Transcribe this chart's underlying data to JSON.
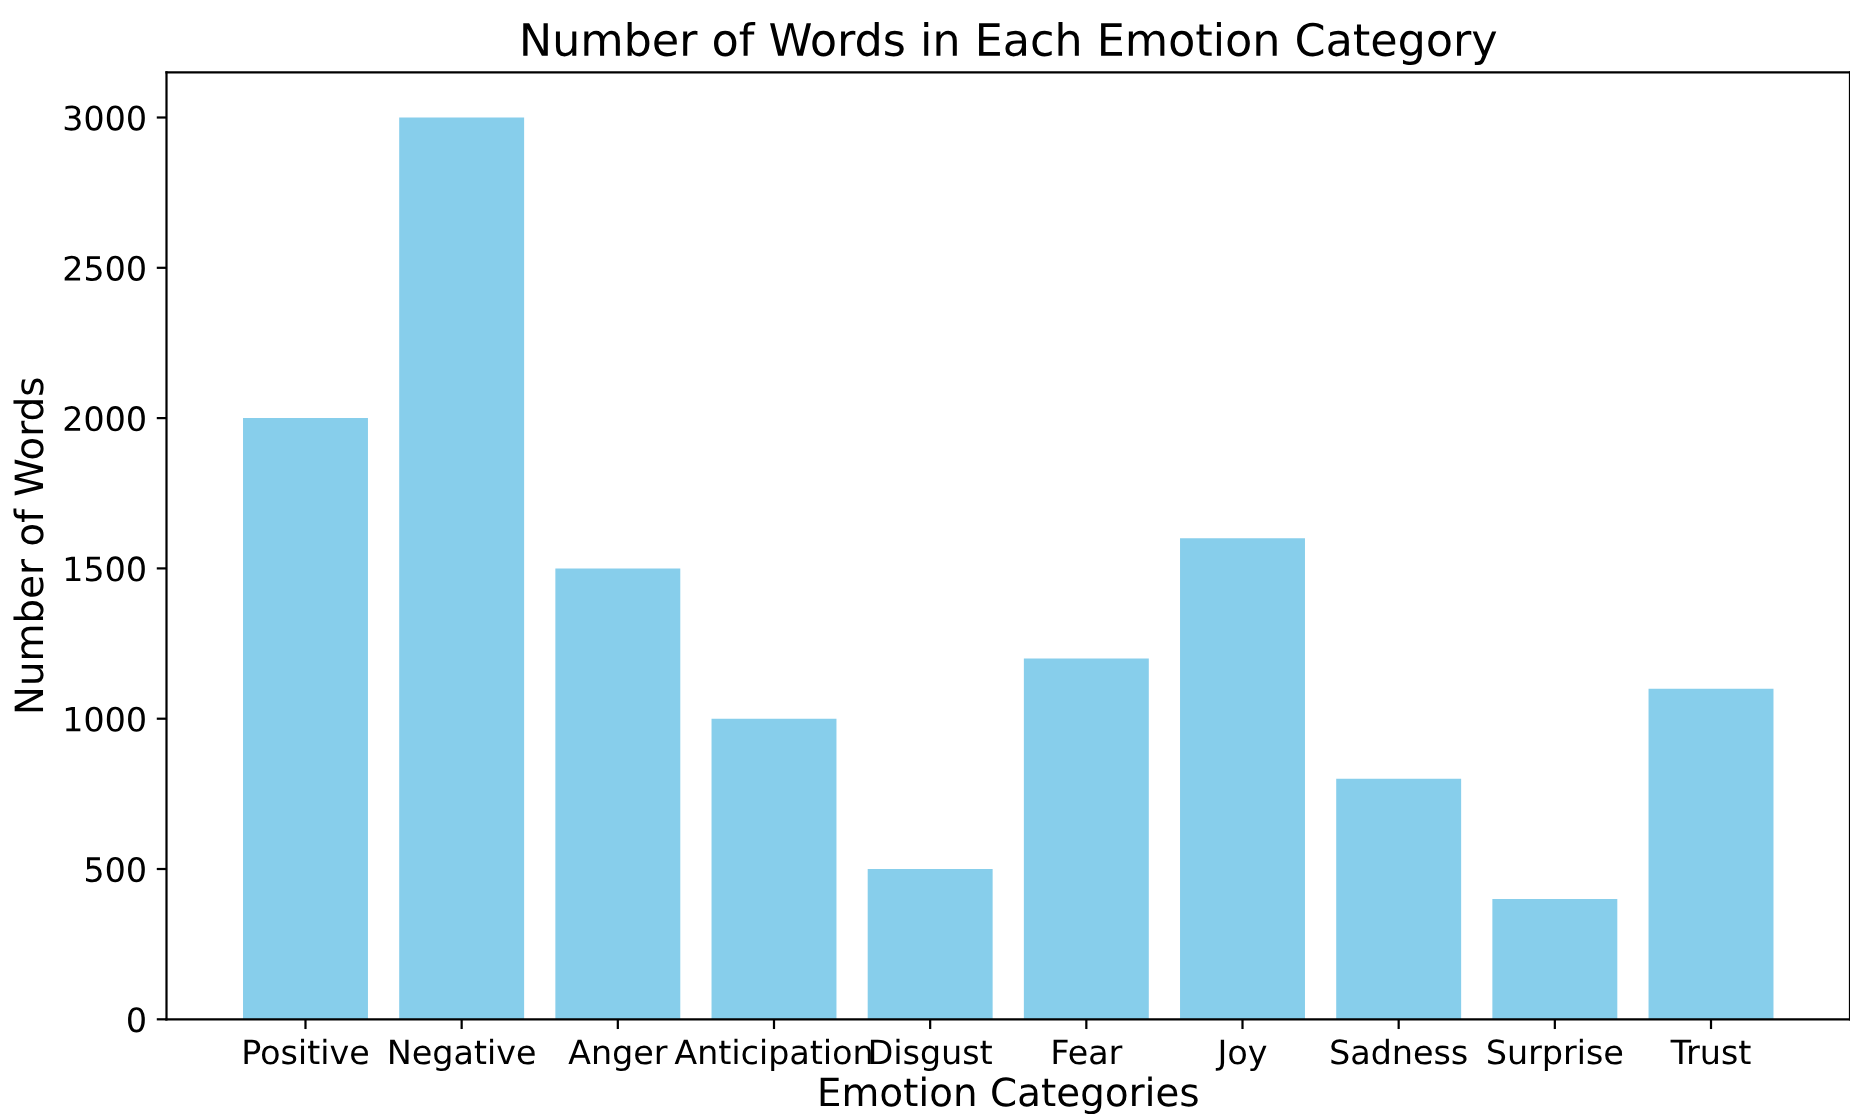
{
  "chart_data": {
    "type": "bar",
    "title": "Number of Words in Each Emotion Category",
    "xlabel": "Emotion Categories",
    "ylabel": "Number of Words",
    "categories": [
      "Positive",
      "Negative",
      "Anger",
      "Anticipation",
      "Disgust",
      "Fear",
      "Joy",
      "Sadness",
      "Surprise",
      "Trust"
    ],
    "values": [
      2000,
      3000,
      1500,
      1000,
      500,
      1200,
      1600,
      800,
      400,
      1100
    ],
    "color": "#87ceeb",
    "ylim": [
      0,
      3150
    ],
    "yticks": [
      0,
      500,
      1000,
      1500,
      2000,
      2500,
      3000
    ],
    "grid": false,
    "legend": false
  }
}
